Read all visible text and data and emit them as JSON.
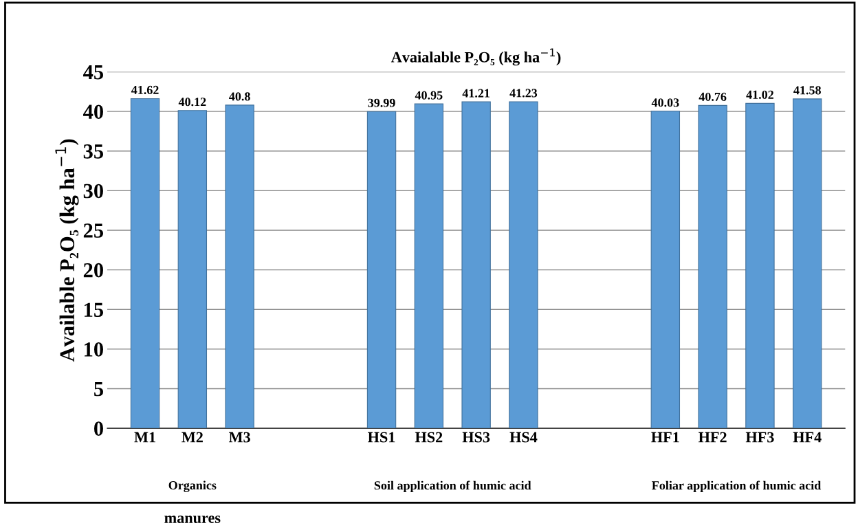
{
  "chart_data": {
    "type": "bar",
    "title": "Avaialable P₂O₅ (kg ha$^{−1}$)",
    "ylabel": "Available P₂O₅ (kg ha$^{−1}$)",
    "categories": [
      "M1",
      "M2",
      "M3",
      null,
      null,
      "HS1",
      "HS2",
      "HS3",
      "HS4",
      null,
      null,
      "HF1",
      "HF2",
      "HF3",
      "HF4"
    ],
    "values": [
      41.62,
      40.12,
      40.8,
      null,
      null,
      39.99,
      40.95,
      41.21,
      41.23,
      null,
      null,
      40.03,
      40.76,
      41.02,
      41.58
    ],
    "color": "#5b9bd5",
    "ylim": [
      0,
      45
    ],
    "yticks": [
      0,
      5,
      10,
      15,
      20,
      25,
      30,
      35,
      40,
      45
    ],
    "grid": "y",
    "data_labels": true,
    "annotations": [
      "Organics",
      "Soil application of humic acid",
      "Foliar application of humic acid",
      "manures"
    ]
  }
}
